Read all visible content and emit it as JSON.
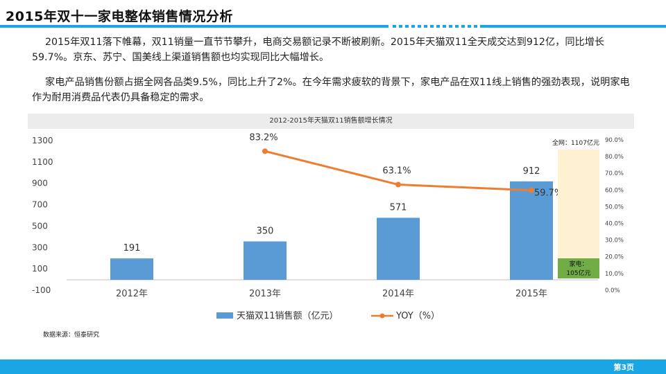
{
  "slide": {
    "title": "2015年双十一家电整体销售情况分析",
    "paragraph1": "2015年双11落下帷幕，双11销量一直节节攀升，电商交易额记录不断被刷新。2015年天猫双11全天成交达到912亿，同比增长59.7%。京东、苏宁、国美线上渠道销售额也均实现同比大幅增长。",
    "paragraph2": "家电产品销售份额占据全网各品类9.5%，同比上升了2%。在今年需求疲软的背景下，家电产品在双11线上销售的强劲表现，说明家电作为耐用消费品代表仍具备稳定的需求。",
    "source": "数据来源：恒泰研究",
    "page_number": "第3页"
  },
  "colors": {
    "bar": "#5b9bd5",
    "line": "#ed7d31",
    "accent": "#1aa6e4",
    "total_box": "#fdf1d2",
    "appliance_box": "#70ad47"
  },
  "chart_data": [
    {
      "type": "bar",
      "title": "2012-2015年天猫双11销售额增长情况",
      "categories": [
        "2012年",
        "2013年",
        "2014年",
        "2015年"
      ],
      "series": [
        {
          "name": "天猫双11销售额（亿元）",
          "type": "bar",
          "axis": "left",
          "values": [
            191,
            350,
            571,
            912
          ],
          "labels": [
            "191",
            "350",
            "571",
            "912"
          ]
        },
        {
          "name": "YOY（%）",
          "type": "line",
          "axis": "right",
          "values": [
            null,
            83.2,
            63.1,
            59.7
          ],
          "labels": [
            "",
            "83.2%",
            "63.1%",
            "59.7%"
          ]
        }
      ],
      "y_left": {
        "ticks": [
          "1300",
          "1100",
          "900",
          "700",
          "500",
          "300",
          "100",
          "-100"
        ],
        "ylim": [
          -100,
          1300
        ]
      },
      "y_right": {
        "ticks": [
          "90.0%",
          "80.0%",
          "70.0%",
          "60.0%",
          "50.0%",
          "40.0%",
          "30.0%",
          "20.0%",
          "10.0%",
          "0.0%"
        ],
        "ylim": [
          0,
          90
        ]
      },
      "legend": "bottom",
      "grid": false
    },
    {
      "type": "bar",
      "stacked": true,
      "ylim": [
        0,
        90
      ],
      "ylabel_unit": "%",
      "categories": [
        "2015年"
      ],
      "segments": [
        {
          "label": "家电：105亿元",
          "value": 105,
          "color": "#70ad47"
        },
        {
          "label": "全网：1107亿元",
          "value": 1107,
          "color": "#fdf1d2"
        }
      ]
    }
  ]
}
